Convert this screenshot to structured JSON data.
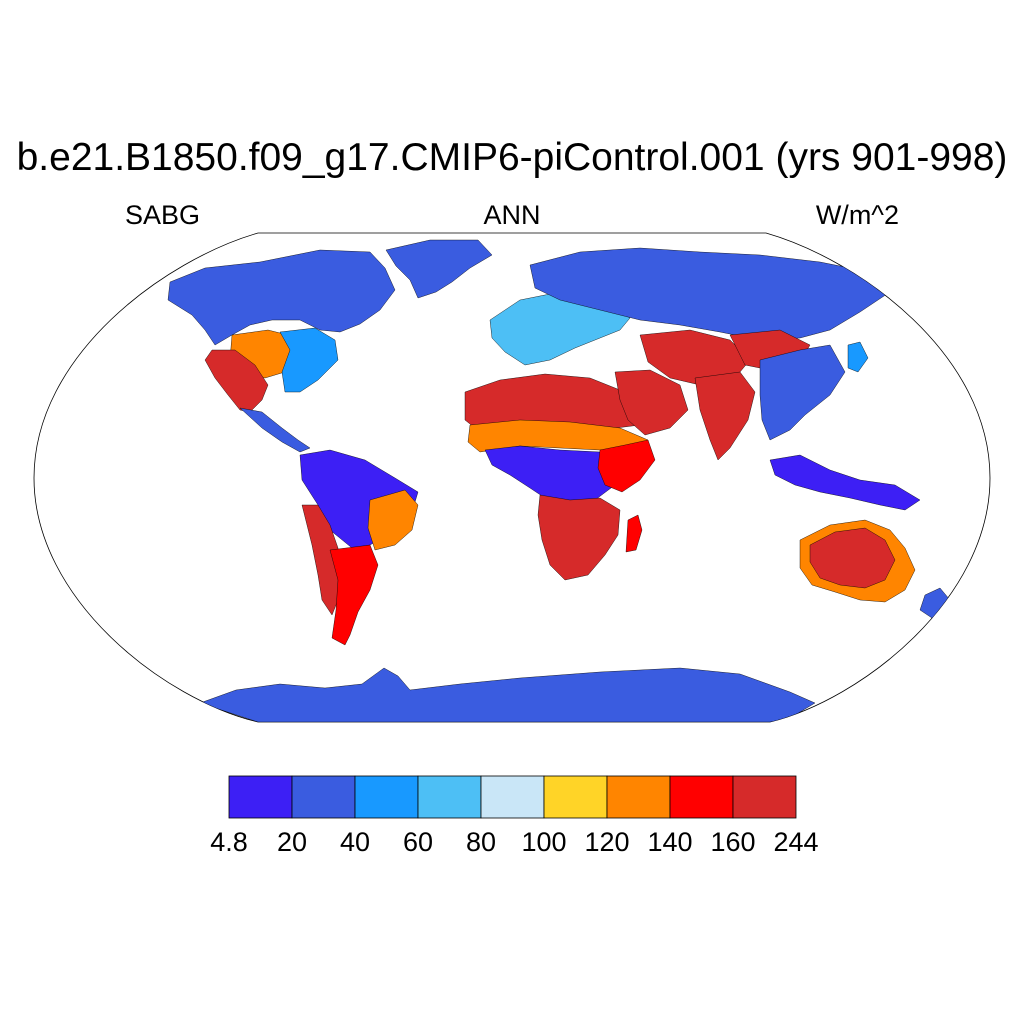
{
  "title": "b.e21.B1850.f09_g17.CMIP6-piControl.001 (yrs 901-998)",
  "subtitle_left": "SABG",
  "subtitle_center": "ANN",
  "subtitle_right": "W/m^2",
  "map": {
    "projection": "Robinson",
    "variable": "SABG",
    "season": "ANN",
    "units": "W/m^2",
    "ocean_color": "#ffffff",
    "region_values": [
      {
        "region": "Antarctica",
        "level": 1
      },
      {
        "region": "Greenland",
        "level": 1
      },
      {
        "region": "North America (Arctic/Canada)",
        "level": 1
      },
      {
        "region": "Great Plains",
        "level": 6
      },
      {
        "region": "US Southwest / Mexico",
        "level": 8
      },
      {
        "region": "Eastern US",
        "level": 2
      },
      {
        "region": "Amazon",
        "level": 0
      },
      {
        "region": "Andes (Atacama/Altiplano)",
        "level": 8
      },
      {
        "region": "Patagonia / Pampas",
        "level": 7
      },
      {
        "region": "Brazilian Highlands",
        "level": 6
      },
      {
        "region": "Sahara",
        "level": 8
      },
      {
        "region": "Sahel",
        "level": 6
      },
      {
        "region": "Central Africa (Congo)",
        "level": 0
      },
      {
        "region": "Southern Africa (Kalahari)",
        "level": 8
      },
      {
        "region": "East Africa",
        "level": 7
      },
      {
        "region": "Arabian Peninsula",
        "level": 8
      },
      {
        "region": "Iran / Central Asia deserts",
        "level": 8
      },
      {
        "region": "Tibet / Gobi",
        "level": 8
      },
      {
        "region": "India",
        "level": 8
      },
      {
        "region": "Europe",
        "level": 3
      },
      {
        "region": "Siberia",
        "level": 1
      },
      {
        "region": "Southeast Asia",
        "level": 1
      },
      {
        "region": "Maritime Continent",
        "level": 0
      },
      {
        "region": "Australia (interior)",
        "level": 8
      },
      {
        "region": "Australia (coast)",
        "level": 6
      },
      {
        "region": "New Zealand",
        "level": 1
      }
    ]
  },
  "colorbar": {
    "colors": [
      "#3d1ff5",
      "#3a5ce0",
      "#1899ff",
      "#4dbff5",
      "#c9e6f7",
      "#ffd427",
      "#ff8500",
      "#ff0000",
      "#d62a2a"
    ],
    "labels": [
      "4.8",
      "20",
      "40",
      "60",
      "80",
      "100",
      "120",
      "140",
      "160",
      "244"
    ]
  }
}
